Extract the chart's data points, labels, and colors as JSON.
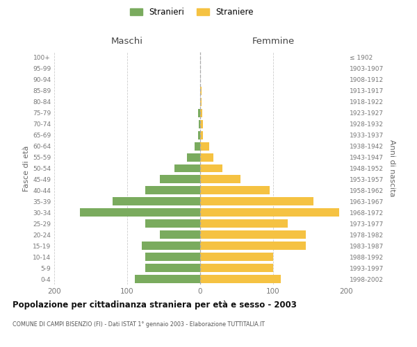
{
  "age_groups": [
    "0-4",
    "5-9",
    "10-14",
    "15-19",
    "20-24",
    "25-29",
    "30-34",
    "35-39",
    "40-44",
    "45-49",
    "50-54",
    "55-59",
    "60-64",
    "65-69",
    "70-74",
    "75-79",
    "80-84",
    "85-89",
    "90-94",
    "95-99",
    "100+"
  ],
  "birth_years": [
    "1998-2002",
    "1993-1997",
    "1988-1992",
    "1983-1987",
    "1978-1982",
    "1973-1977",
    "1968-1972",
    "1963-1967",
    "1958-1962",
    "1953-1957",
    "1948-1952",
    "1943-1947",
    "1938-1942",
    "1933-1937",
    "1928-1932",
    "1923-1927",
    "1918-1922",
    "1913-1917",
    "1908-1912",
    "1903-1907",
    "≤ 1902"
  ],
  "males": [
    90,
    75,
    75,
    80,
    55,
    75,
    165,
    120,
    75,
    55,
    35,
    18,
    8,
    3,
    2,
    3,
    0,
    0,
    0,
    0,
    0
  ],
  "females": [
    110,
    100,
    100,
    145,
    145,
    120,
    190,
    155,
    95,
    55,
    30,
    18,
    12,
    4,
    4,
    3,
    2,
    2,
    0,
    0,
    0
  ],
  "male_color": "#7aab5e",
  "female_color": "#f5c242",
  "background_color": "#ffffff",
  "grid_color": "#cccccc",
  "title": "Popolazione per cittadinanza straniera per età e sesso - 2003",
  "subtitle": "COMUNE DI CAMPI BISENZIO (FI) - Dati ISTAT 1° gennaio 2003 - Elaborazione TUTTITALIA.IT",
  "header_left": "Maschi",
  "header_right": "Femmine",
  "ylabel_left": "Fasce di età",
  "ylabel_right": "Anni di nascita",
  "legend_male": "Stranieri",
  "legend_female": "Straniere",
  "xlim": 200,
  "bar_height": 0.75
}
